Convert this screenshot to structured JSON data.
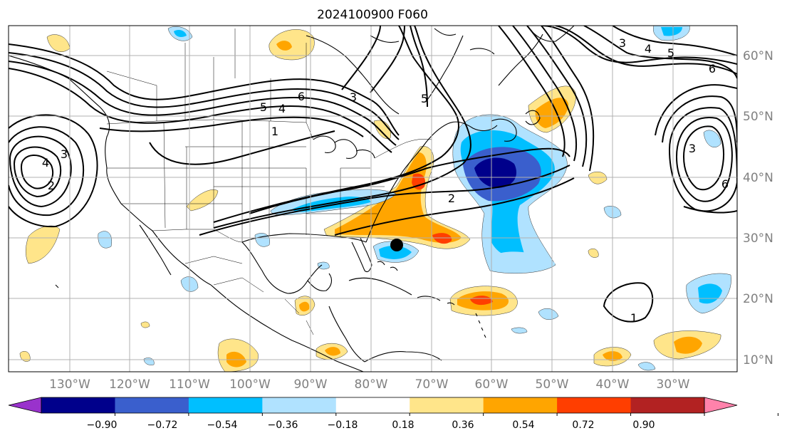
{
  "title": "2024100900 F060",
  "lon_labels": [
    "130°W",
    "120°W",
    "110°W",
    "100°W",
    "90°W",
    "80°W",
    "70°W",
    "60°W",
    "50°W",
    "40°W",
    "30°W"
  ],
  "lat_labels": [
    "60°N",
    "50°N",
    "40°N",
    "30°N",
    "20°N",
    "10°N"
  ],
  "colorbar": {
    "ticks": [
      "−0.90",
      "−0.72",
      "−0.54",
      "−0.36",
      "−0.18",
      "0.18",
      "0.36",
      "0.54",
      "0.72",
      "0.90"
    ],
    "colors": [
      "#9932CC",
      "#00008B",
      "#3A5FCD",
      "#00BFFF",
      "#B0E2FF",
      "#FFFFFF",
      "#FFE58A",
      "#FFA500",
      "#FF3E00",
      "#B22222",
      "#FF82AB"
    ]
  },
  "contour_labels": [
    {
      "text": "6"
    },
    {
      "text": "5"
    },
    {
      "text": "4"
    },
    {
      "text": "3"
    },
    {
      "text": "1"
    },
    {
      "text": "5"
    },
    {
      "text": "2"
    },
    {
      "text": "3"
    },
    {
      "text": "4"
    },
    {
      "text": "5"
    },
    {
      "text": "6"
    },
    {
      "text": "3"
    },
    {
      "text": "6"
    },
    {
      "text": "1"
    },
    {
      "text": "4"
    },
    {
      "text": "3"
    },
    {
      "text": "2"
    }
  ],
  "colors": {
    "contour": "#000000",
    "coast": "#000000",
    "grid": "#b0b0b0",
    "axis_label": "#808080",
    "storm_marker": "#000000"
  }
}
